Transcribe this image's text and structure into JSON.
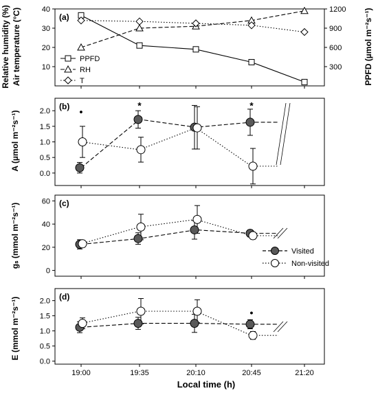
{
  "chart_data": [
    {
      "panel": "(a)",
      "type": "line",
      "x": [
        "19:00",
        "19:35",
        "20:10",
        "20:45",
        "21:20"
      ],
      "ylabel_left": [
        "Relative humidity (%)",
        "Air temperature (°C)"
      ],
      "ylabel_right": "PPFD (µmol m⁻²s⁻¹)",
      "ylim_left": [
        0,
        40
      ],
      "yticks_left": [
        "10",
        "20",
        "30",
        "40"
      ],
      "ylim_right": [
        0,
        1200
      ],
      "yticks_right": [
        "300",
        "600",
        "900",
        "1200"
      ],
      "series": [
        {
          "name": "PPFD",
          "axis": "right",
          "marker": "square",
          "style": "solid",
          "values": [
            1100,
            630,
            570,
            370,
            60
          ]
        },
        {
          "name": "RH",
          "axis": "left",
          "marker": "triangle",
          "style": "dashed",
          "values": [
            20,
            30,
            31,
            34,
            39
          ]
        },
        {
          "name": "T",
          "axis": "left",
          "marker": "diamond",
          "style": "dotted",
          "values": [
            34,
            33.5,
            32.5,
            31.5,
            28
          ]
        }
      ]
    },
    {
      "panel": "(b)",
      "type": "line",
      "x": [
        "19:00",
        "19:35",
        "20:10",
        "20:45"
      ],
      "ylabel": "A (µmol m⁻²s⁻¹)",
      "ylim": [
        -0.4,
        2.4
      ],
      "yticks": [
        "0.0",
        "0.5",
        "1.0",
        "1.5",
        "2.0"
      ],
      "series": [
        {
          "name": "Visited",
          "values": [
            0.17,
            1.72,
            1.47,
            1.63
          ],
          "err": [
            0.17,
            0.28,
            0.7,
            0.42
          ]
        },
        {
          "name": "Non-visited",
          "values": [
            1.0,
            0.75,
            1.45,
            0.22
          ],
          "err": [
            0.5,
            0.4,
            0.68,
            0.57
          ]
        }
      ],
      "annotations": [
        {
          "x": "19:00",
          "y": 1.97,
          "text": "•"
        },
        {
          "x": "19:35",
          "y": 2.17,
          "text": "*"
        },
        {
          "x": "20:45",
          "y": 2.17,
          "text": "*"
        }
      ]
    },
    {
      "panel": "(c)",
      "type": "line",
      "x": [
        "19:00",
        "19:35",
        "20:10",
        "20:45"
      ],
      "ylabel": "gₛ (mmol m⁻²s⁻¹)",
      "ylim": [
        -5,
        65
      ],
      "yticks": [
        "0",
        "20",
        "40",
        "60"
      ],
      "series": [
        {
          "name": "Visited",
          "values": [
            22.5,
            27.5,
            35,
            32
          ],
          "err": [
            4,
            5,
            8,
            3
          ]
        },
        {
          "name": "Non-visited",
          "values": [
            23,
            37.5,
            44,
            30
          ],
          "err": [
            3,
            11,
            12,
            3
          ]
        }
      ]
    },
    {
      "panel": "(d)",
      "type": "line",
      "x": [
        "19:00",
        "19:35",
        "20:10",
        "20:45"
      ],
      "ylabel": "E (mmol m⁻²s⁻¹)",
      "ylim": [
        -0.1,
        2.4
      ],
      "yticks": [
        "0.0",
        "0.5",
        "1.0",
        "1.5",
        "2.0"
      ],
      "series": [
        {
          "name": "Visited",
          "values": [
            1.12,
            1.25,
            1.25,
            1.22
          ],
          "err": [
            0.18,
            0.2,
            0.3,
            0.15
          ]
        },
        {
          "name": "Non-visited",
          "values": [
            1.25,
            1.65,
            1.65,
            0.85
          ],
          "err": [
            0.18,
            0.42,
            0.38,
            0.13
          ]
        }
      ],
      "annotations": [
        {
          "x": "20:45",
          "y": 1.6,
          "text": "•"
        }
      ]
    }
  ],
  "x_axis": {
    "label": "Local time (h)",
    "ticks": [
      "19:00",
      "19:35",
      "20:10",
      "20:45",
      "21:20"
    ]
  },
  "legend": {
    "visited_label": "Visited",
    "nonvisited_label": "Non-visited"
  },
  "colors": {
    "visited_fill": "#595959",
    "nonvisited_fill": "#ffffff",
    "stroke": "#000000"
  }
}
